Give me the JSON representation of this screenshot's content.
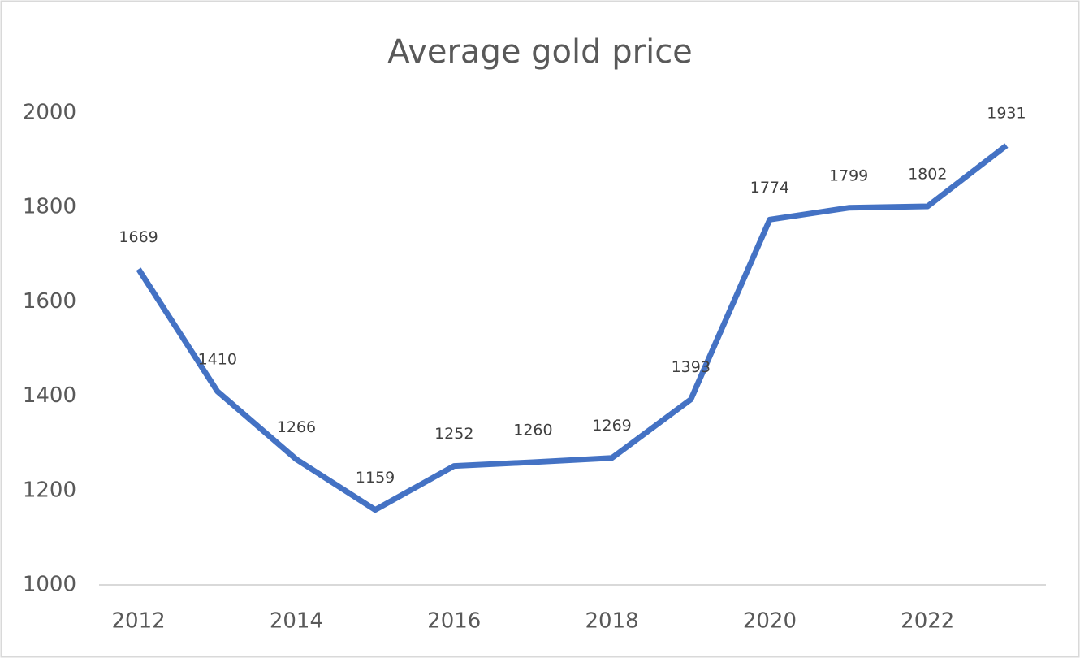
{
  "chart_data": {
    "type": "line",
    "title": "Average gold price",
    "x": [
      2012,
      2013,
      2014,
      2015,
      2016,
      2017,
      2018,
      2019,
      2020,
      2021,
      2022,
      2023
    ],
    "values": [
      1669,
      1410,
      1266,
      1159,
      1252,
      1260,
      1269,
      1393,
      1774,
      1799,
      1802,
      1931
    ],
    "color": "#4472c4",
    "xlim": [
      2011.5,
      2023.5
    ],
    "xticks": [
      2012,
      2014,
      2016,
      2018,
      2020,
      2022
    ],
    "ylim": [
      1000,
      2000
    ],
    "yticks": [
      1000,
      1200,
      1400,
      1600,
      1800,
      2000
    ],
    "grid": false
  }
}
